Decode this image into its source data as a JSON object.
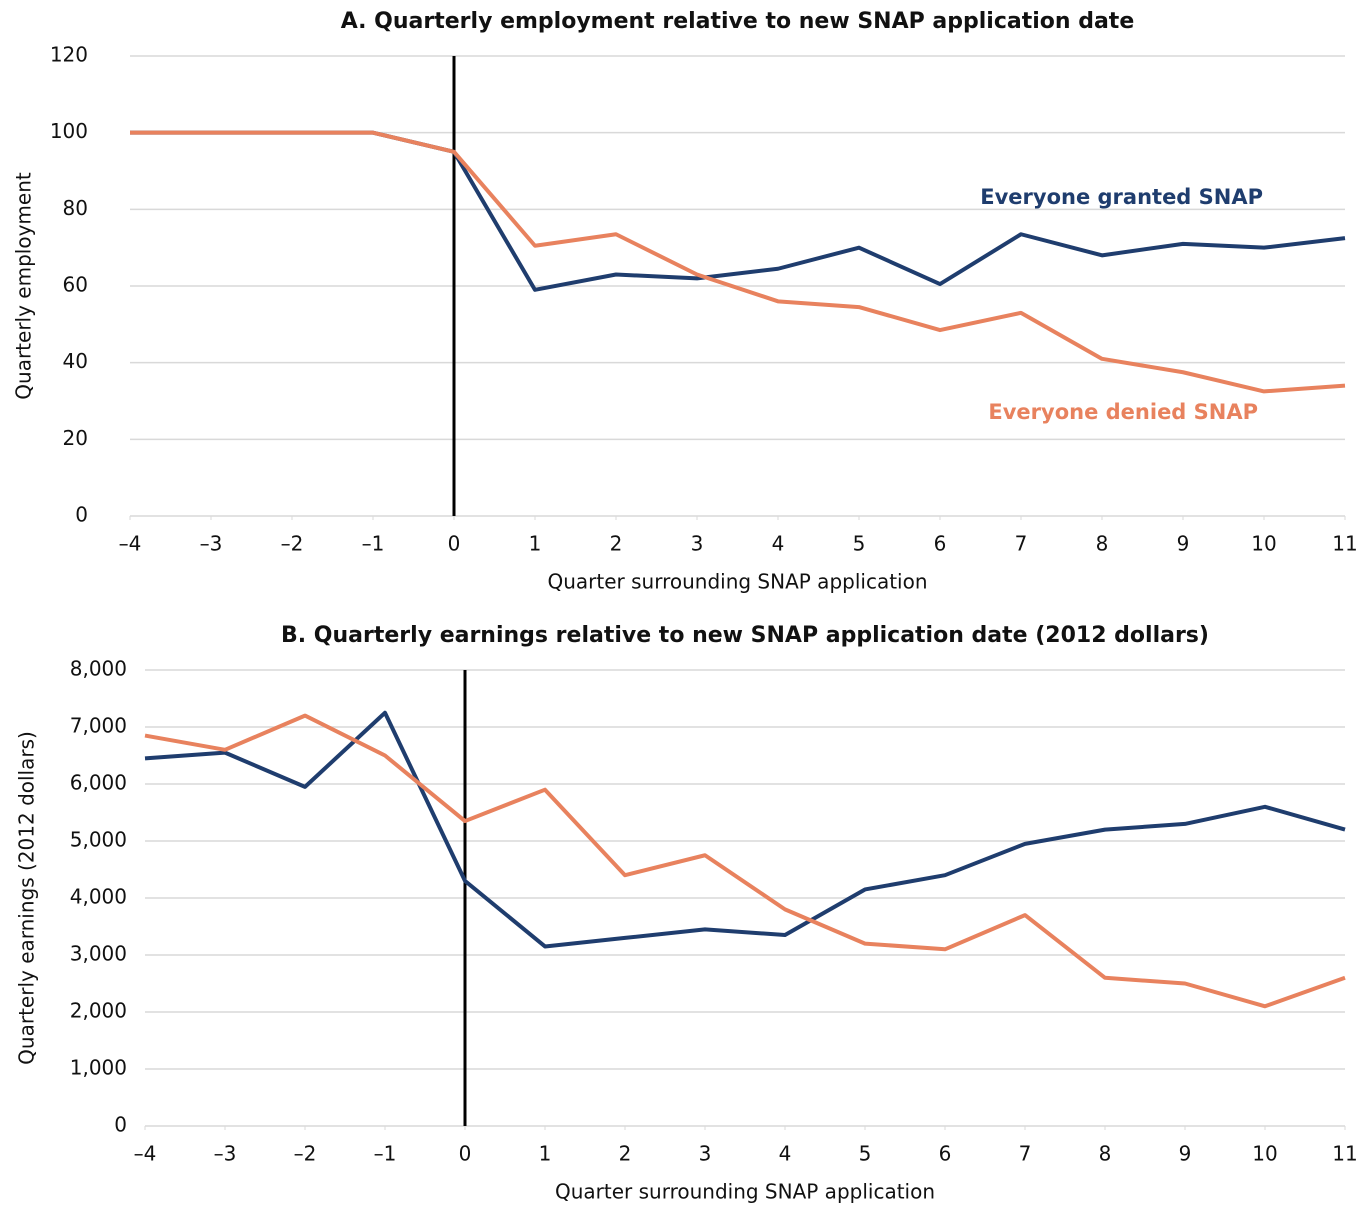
{
  "chart_data": [
    {
      "type": "line",
      "title": "A. Quarterly employment relative to new SNAP application date",
      "x_label": "Quarter surrounding SNAP application",
      "y_label": "Quarterly employment",
      "x": [
        -4,
        -3,
        -2,
        -1,
        0,
        1,
        2,
        3,
        4,
        5,
        6,
        7,
        8,
        9,
        10,
        11
      ],
      "series": [
        {
          "name": "Everyone granted SNAP",
          "color": "#1f3d6e",
          "values": [
            100,
            100,
            100,
            100,
            95,
            59,
            63,
            62,
            64.5,
            70,
            60.5,
            73.5,
            68,
            71,
            70,
            72.5
          ]
        },
        {
          "name": "Everyone denied SNAP",
          "color": "#e8825e",
          "values": [
            100,
            100,
            100,
            100,
            95,
            70.5,
            73.5,
            63,
            56,
            54.5,
            48.5,
            53,
            41,
            37.5,
            32.5,
            34
          ]
        }
      ],
      "xlim": [
        -4,
        11
      ],
      "xticks": [
        {
          "value": -4,
          "label": "–4"
        },
        {
          "value": -3,
          "label": "–3"
        },
        {
          "value": -2,
          "label": "–2"
        },
        {
          "value": -1,
          "label": "–1"
        },
        0,
        1,
        2,
        3,
        4,
        5,
        6,
        7,
        8,
        9,
        10,
        11
      ],
      "ylim": [
        0,
        120
      ],
      "yticks": [
        0,
        20,
        40,
        60,
        80,
        100,
        120
      ],
      "grid": true,
      "vline": 0
    },
    {
      "type": "line",
      "title": "B. Quarterly earnings relative to new SNAP application date (2012 dollars)",
      "x_label": "Quarter surrounding SNAP application",
      "y_label": "Quarterly earnings (2012 dollars)",
      "x": [
        -4,
        -3,
        -2,
        -1,
        0,
        1,
        2,
        3,
        4,
        5,
        6,
        7,
        8,
        9,
        10,
        11
      ],
      "series": [
        {
          "color": "#1f3d6e",
          "values": [
            6450,
            6550,
            5950,
            7250,
            4300,
            3150,
            3300,
            3450,
            3350,
            4150,
            4400,
            4950,
            5200,
            5300,
            5600,
            5200
          ]
        },
        {
          "color": "#e8825e",
          "values": [
            6850,
            6600,
            7200,
            6500,
            5350,
            5900,
            4400,
            4750,
            3800,
            3200,
            3100,
            3700,
            2600,
            2500,
            2100,
            2600
          ]
        }
      ],
      "xlim": [
        -4,
        11
      ],
      "xticks": [
        {
          "value": -4,
          "label": "–4"
        },
        {
          "value": -3,
          "label": "–3"
        },
        {
          "value": -2,
          "label": "–2"
        },
        {
          "value": -1,
          "label": "–1"
        },
        0,
        1,
        2,
        3,
        4,
        5,
        6,
        7,
        8,
        9,
        10,
        11
      ],
      "ylim": [
        0,
        8000
      ],
      "yticks": [
        0,
        {
          "value": 1000,
          "label": "1,000"
        },
        {
          "value": 2000,
          "label": "2,000"
        },
        {
          "value": 3000,
          "label": "3,000"
        },
        {
          "value": 4000,
          "label": "4,000"
        },
        {
          "value": 5000,
          "label": "5,000"
        },
        {
          "value": 6000,
          "label": "6,000"
        },
        {
          "value": 7000,
          "label": "7,000"
        },
        {
          "value": 8000,
          "label": "8,000"
        }
      ],
      "grid": true,
      "vline": 0
    }
  ]
}
